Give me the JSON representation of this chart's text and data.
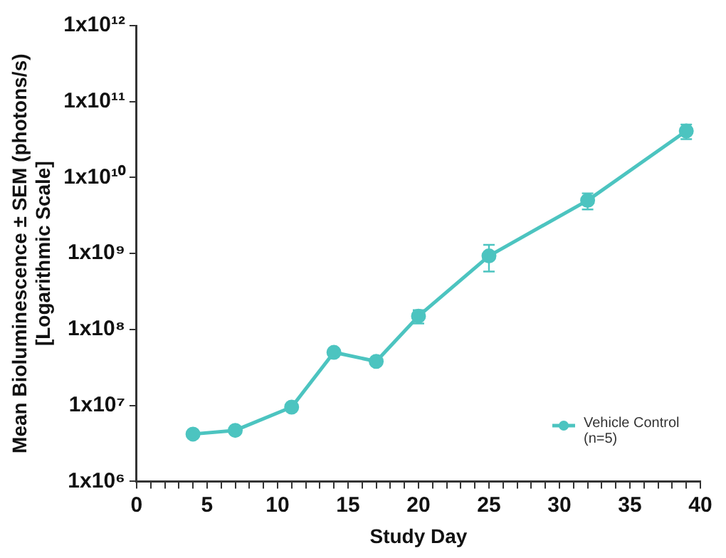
{
  "chart_data": {
    "type": "line",
    "xlabel": "Study Day",
    "ylabel": "Mean Bioluminescence ± SEM (photons/s)\n[Logarithmic Scale]",
    "x": [
      4,
      7,
      11,
      14,
      17,
      20,
      25,
      32,
      39
    ],
    "series": [
      {
        "name": "Vehicle Control (n=5)",
        "color": "#4cc4c0",
        "values": [
          4200000,
          4700000,
          9500000,
          50000000,
          38000000,
          150000000,
          930000000,
          5000000000,
          41000000000
        ],
        "errors": [
          null,
          null,
          null,
          null,
          null,
          [
            120000000,
            180000000
          ],
          [
            580000000,
            1300000000
          ],
          [
            3800000000,
            6200000000
          ],
          [
            32000000000,
            50000000000
          ]
        ]
      }
    ],
    "xlim": [
      0,
      40
    ],
    "xticks": [
      0,
      {
        "value": 1,
        "label": null
      },
      {
        "value": 2,
        "label": null
      },
      {
        "value": 3,
        "label": null
      },
      {
        "value": 4,
        "label": null
      },
      5,
      {
        "value": 6,
        "label": null
      },
      {
        "value": 7,
        "label": null
      },
      {
        "value": 8,
        "label": null
      },
      {
        "value": 9,
        "label": null
      },
      10,
      {
        "value": 11,
        "label": null
      },
      {
        "value": 12,
        "label": null
      },
      {
        "value": 13,
        "label": null
      },
      {
        "value": 14,
        "label": null
      },
      15,
      {
        "value": 16,
        "label": null
      },
      {
        "value": 17,
        "label": null
      },
      {
        "value": 18,
        "label": null
      },
      {
        "value": 19,
        "label": null
      },
      20,
      {
        "value": 21,
        "label": null
      },
      {
        "value": 22,
        "label": null
      },
      {
        "value": 23,
        "label": null
      },
      {
        "value": 24,
        "label": null
      },
      25,
      {
        "value": 26,
        "label": null
      },
      {
        "value": 27,
        "label": null
      },
      {
        "value": 28,
        "label": null
      },
      {
        "value": 29,
        "label": null
      },
      30,
      {
        "value": 31,
        "label": null
      },
      {
        "value": 32,
        "label": null
      },
      {
        "value": 33,
        "label": null
      },
      {
        "value": 34,
        "label": null
      },
      35,
      {
        "value": 36,
        "label": null
      },
      {
        "value": 37,
        "label": null
      },
      {
        "value": 38,
        "label": null
      },
      {
        "value": 39,
        "label": null
      },
      40
    ],
    "ylim": [
      1000000,
      1000000000000
    ],
    "yticks": [
      {
        "value": 1000000,
        "label": "1x10⁶"
      },
      {
        "value": 10000000,
        "label": "1x10⁷"
      },
      {
        "value": 100000000,
        "label": "1x10⁸"
      },
      {
        "value": 1000000000,
        "label": "1x10⁹"
      },
      {
        "value": 10000000000,
        "label": "1x10¹⁰"
      },
      {
        "value": 100000000000,
        "label": "1x10¹¹"
      },
      {
        "value": 1000000000000,
        "label": "1x10¹²"
      }
    ],
    "log": "y",
    "grid": false,
    "legend": "bottom right",
    "marker": "circle",
    "line_style": "solid"
  }
}
